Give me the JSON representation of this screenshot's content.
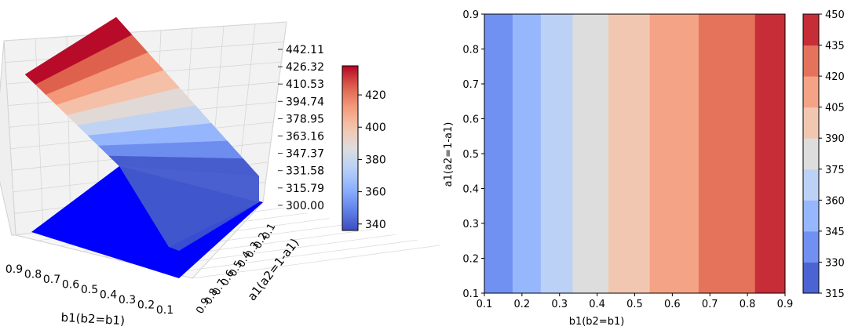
{
  "chart_data": [
    {
      "type": "surface",
      "xlabel": "b1(b2=b1)",
      "ylabel": "a1(a2=1-a1)",
      "x_ticks": [
        "0.9",
        "0.8",
        "0.7",
        "0.6",
        "0.5",
        "0.4",
        "0.3",
        "0.2",
        "0.1"
      ],
      "y_ticks": [
        "0.9",
        "0.8",
        "0.7",
        "0.6",
        "0.5",
        "0.4",
        "0.3",
        "0.2",
        "0.1"
      ],
      "z_ticks": [
        "442.11",
        "426.32",
        "410.53",
        "394.74",
        "378.95",
        "363.16",
        "347.37",
        "331.58",
        "315.79",
        "300.00"
      ],
      "zlim": [
        300,
        442.11
      ],
      "floor_value": 300,
      "b1": [
        0.1,
        0.2,
        0.3,
        0.4,
        0.5,
        0.6,
        0.7,
        0.8,
        0.9
      ],
      "values": [
        340,
        352,
        364,
        377,
        389,
        401,
        413,
        425,
        437
      ],
      "colorbar": {
        "ticks": [
          "420",
          "400",
          "380",
          "360",
          "340"
        ],
        "range": [
          336,
          438
        ]
      }
    },
    {
      "type": "contour",
      "xlabel": "b1(b2=b1)",
      "ylabel": "a1(a2=1-a1)",
      "xlim": [
        0.1,
        0.9
      ],
      "ylim": [
        0.1,
        0.9
      ],
      "x_ticks": [
        "0.1",
        "0.2",
        "0.3",
        "0.4",
        "0.5",
        "0.6",
        "0.7",
        "0.8",
        "0.9"
      ],
      "y_ticks": [
        "0.1",
        "0.2",
        "0.3",
        "0.4",
        "0.5",
        "0.6",
        "0.7",
        "0.8",
        "0.9"
      ],
      "bands": [
        {
          "b1_from": 0.1,
          "b1_to": 0.175,
          "level": 337.5
        },
        {
          "b1_from": 0.175,
          "b1_to": 0.25,
          "level": 352.5
        },
        {
          "b1_from": 0.25,
          "b1_to": 0.335,
          "level": 367.5
        },
        {
          "b1_from": 0.335,
          "b1_to": 0.43,
          "level": 382.5
        },
        {
          "b1_from": 0.43,
          "b1_to": 0.54,
          "level": 397.5
        },
        {
          "b1_from": 0.54,
          "b1_to": 0.67,
          "level": 412.5
        },
        {
          "b1_from": 0.67,
          "b1_to": 0.82,
          "level": 427.5
        },
        {
          "b1_from": 0.82,
          "b1_to": 0.9,
          "level": 442.5
        }
      ],
      "colorbar": {
        "ticks": [
          "450",
          "435",
          "420",
          "405",
          "390",
          "375",
          "360",
          "345",
          "330",
          "315"
        ],
        "levels": [
          315,
          330,
          345,
          360,
          375,
          390,
          405,
          420,
          435,
          450
        ]
      }
    }
  ]
}
